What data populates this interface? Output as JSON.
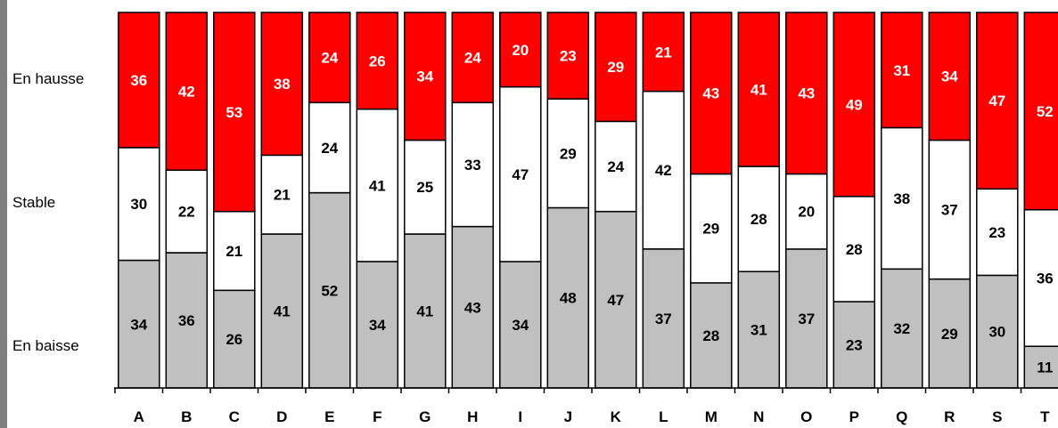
{
  "chart_data": {
    "type": "bar",
    "stacked": true,
    "normalized_percent": true,
    "categories": [
      "A",
      "B",
      "C",
      "D",
      "E",
      "F",
      "G",
      "H",
      "I",
      "J",
      "K",
      "L",
      "M",
      "N",
      "O",
      "P",
      "Q",
      "R",
      "S",
      "T"
    ],
    "series": [
      {
        "name": "En baisse",
        "color": "#c0c0c0",
        "label_color": "#000000",
        "values": [
          34,
          36,
          26,
          41,
          52,
          34,
          41,
          43,
          34,
          48,
          47,
          37,
          28,
          31,
          37,
          23,
          32,
          29,
          30,
          11
        ]
      },
      {
        "name": "Stable",
        "color": "#ffffff",
        "label_color": "#000000",
        "values": [
          30,
          22,
          21,
          21,
          24,
          41,
          25,
          33,
          47,
          29,
          24,
          42,
          29,
          28,
          20,
          28,
          38,
          37,
          23,
          36
        ]
      },
      {
        "name": "En hausse",
        "color": "#ff0000",
        "label_color": "#ffffff",
        "values": [
          36,
          42,
          53,
          38,
          24,
          26,
          34,
          24,
          20,
          23,
          29,
          21,
          43,
          41,
          43,
          49,
          31,
          34,
          47,
          52
        ]
      }
    ],
    "legend": "left row labels",
    "ylim": [
      0,
      100
    ]
  }
}
